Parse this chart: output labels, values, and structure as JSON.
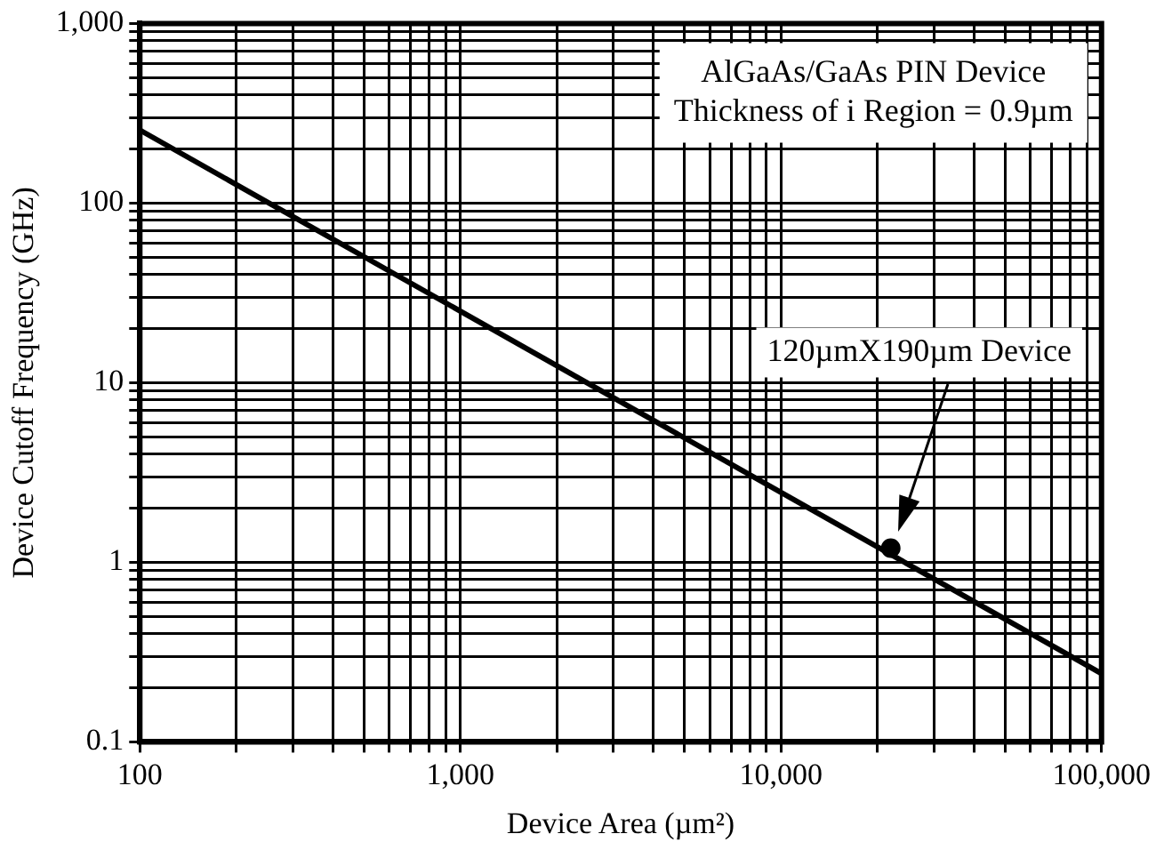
{
  "chart_data": {
    "type": "line",
    "xlabel": "Device Area (µm²)",
    "ylabel": "Device Cutoff Frequency (GHz)",
    "log": "xy",
    "grid": true,
    "legend": false,
    "xlim": [
      100,
      100000
    ],
    "ylim": [
      0.1,
      1000
    ],
    "xticks": [
      {
        "value": 100,
        "label": "100"
      },
      {
        "value": 200,
        "label": null
      },
      {
        "value": 300,
        "label": null
      },
      {
        "value": 400,
        "label": null
      },
      {
        "value": 500,
        "label": null
      },
      {
        "value": 600,
        "label": null
      },
      {
        "value": 700,
        "label": null
      },
      {
        "value": 800,
        "label": null
      },
      {
        "value": 900,
        "label": null
      },
      {
        "value": 1000,
        "label": "1,000"
      },
      {
        "value": 2000,
        "label": null
      },
      {
        "value": 3000,
        "label": null
      },
      {
        "value": 4000,
        "label": null
      },
      {
        "value": 5000,
        "label": null
      },
      {
        "value": 6000,
        "label": null
      },
      {
        "value": 7000,
        "label": null
      },
      {
        "value": 8000,
        "label": null
      },
      {
        "value": 9000,
        "label": null
      },
      {
        "value": 10000,
        "label": "10,000"
      },
      {
        "value": 20000,
        "label": null
      },
      {
        "value": 30000,
        "label": null
      },
      {
        "value": 40000,
        "label": null
      },
      {
        "value": 50000,
        "label": null
      },
      {
        "value": 60000,
        "label": null
      },
      {
        "value": 70000,
        "label": null
      },
      {
        "value": 80000,
        "label": null
      },
      {
        "value": 90000,
        "label": null
      },
      {
        "value": 100000,
        "label": "100,000"
      }
    ],
    "yticks": [
      {
        "value": 0.1,
        "label": "0.1"
      },
      {
        "value": 0.2,
        "label": null
      },
      {
        "value": 0.3,
        "label": null
      },
      {
        "value": 0.4,
        "label": null
      },
      {
        "value": 0.5,
        "label": null
      },
      {
        "value": 0.6,
        "label": null
      },
      {
        "value": 0.7,
        "label": null
      },
      {
        "value": 0.8,
        "label": null
      },
      {
        "value": 0.9,
        "label": null
      },
      {
        "value": 1,
        "label": "1"
      },
      {
        "value": 2,
        "label": null
      },
      {
        "value": 3,
        "label": null
      },
      {
        "value": 4,
        "label": null
      },
      {
        "value": 5,
        "label": null
      },
      {
        "value": 6,
        "label": null
      },
      {
        "value": 7,
        "label": null
      },
      {
        "value": 8,
        "label": null
      },
      {
        "value": 9,
        "label": null
      },
      {
        "value": 10,
        "label": "10"
      },
      {
        "value": 20,
        "label": null
      },
      {
        "value": 30,
        "label": null
      },
      {
        "value": 40,
        "label": null
      },
      {
        "value": 50,
        "label": null
      },
      {
        "value": 60,
        "label": null
      },
      {
        "value": 70,
        "label": null
      },
      {
        "value": 80,
        "label": null
      },
      {
        "value": 90,
        "label": null
      },
      {
        "value": 100,
        "label": "100"
      },
      {
        "value": 200,
        "label": null
      },
      {
        "value": 300,
        "label": null
      },
      {
        "value": 400,
        "label": null
      },
      {
        "value": 500,
        "label": null
      },
      {
        "value": 600,
        "label": null
      },
      {
        "value": 700,
        "label": null
      },
      {
        "value": 800,
        "label": null
      },
      {
        "value": 900,
        "label": null
      },
      {
        "value": 1000,
        "label": "1,000"
      }
    ],
    "series": [
      {
        "color": "#000000",
        "x": [
          100,
          100000
        ],
        "values": [
          255,
          0.24
        ],
        "marker": "none"
      },
      {
        "type": "scatter",
        "color": "#000000",
        "x": [
          22000
        ],
        "values": [
          1.2
        ],
        "marker": "circle"
      }
    ],
    "annotations": [
      "AlGaAs/GaAs PIN Device",
      "Thickness of i Region = 0.9µm",
      "120µmX190µm Device"
    ]
  }
}
